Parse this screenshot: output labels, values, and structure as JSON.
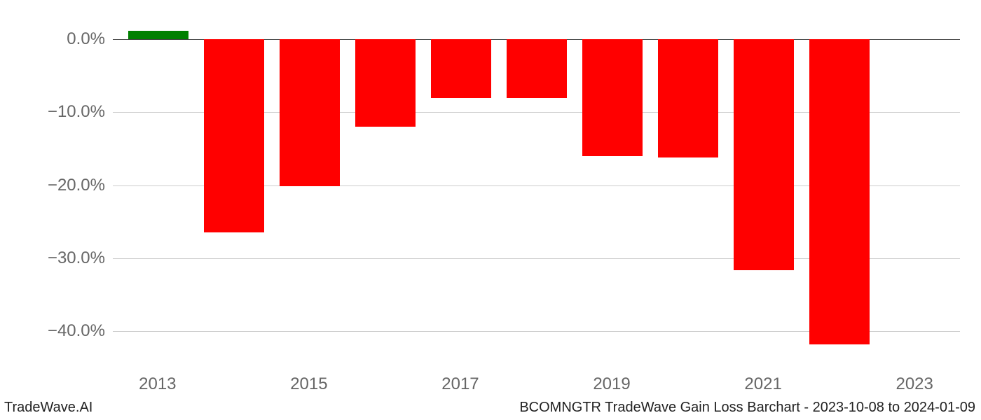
{
  "chart": {
    "type": "bar",
    "years": [
      2013,
      2014,
      2015,
      2016,
      2017,
      2018,
      2019,
      2020,
      2021,
      2022
    ],
    "values": [
      1.2,
      -26.5,
      -20.1,
      -12.0,
      -8.0,
      -8.0,
      -16.0,
      -16.2,
      -31.7,
      -41.8
    ],
    "bar_colors": [
      "#008000",
      "#ff0000",
      "#ff0000",
      "#ff0000",
      "#ff0000",
      "#ff0000",
      "#ff0000",
      "#ff0000",
      "#ff0000",
      "#ff0000"
    ],
    "x_tick_years": [
      2013,
      2015,
      2017,
      2019,
      2021,
      2023
    ],
    "y_ticks": [
      0.0,
      -10.0,
      -20.0,
      -30.0,
      -40.0
    ],
    "y_tick_labels": [
      "0.0%",
      "−10.0%",
      "−20.0%",
      "−30.0%",
      "−40.0%"
    ],
    "x_domain": [
      2012.4,
      2023.6
    ],
    "y_domain": [
      -45.0,
      3.0
    ],
    "bar_width_years": 0.8,
    "background_color": "#ffffff",
    "grid_color": "#cccccc",
    "zero_line_color": "#444444",
    "tick_label_color": "#666666",
    "tick_label_fontsize": 24,
    "footer_fontsize": 20
  },
  "footer": {
    "left": "TradeWave.AI",
    "right": "BCOMNGTR TradeWave Gain Loss Barchart - 2023-10-08 to 2024-01-09"
  }
}
